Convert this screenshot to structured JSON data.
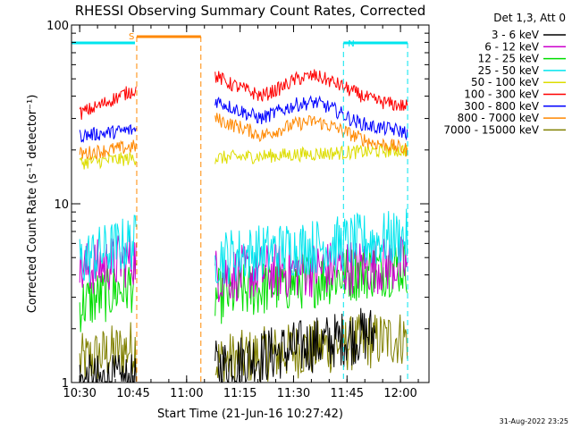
{
  "chart_data": {
    "type": "line",
    "title": "RHESSI Observing Summary Count Rates, Corrected",
    "xlabel": "Start Time (21-Jun-16 10:27:42)",
    "ylabel": "Corrected Count Rate (s⁻¹ detector⁻¹)",
    "yscale": "log",
    "ylim": [
      1,
      100
    ],
    "xlim": [
      "10:27:42",
      "12:08:00"
    ],
    "x_ticks": [
      "10:30",
      "10:45",
      "11:00",
      "11:15",
      "11:30",
      "11:45",
      "12:00"
    ],
    "y_ticks": [
      "1",
      "10",
      "100"
    ],
    "legend_header": "Det 1,3, Att 0",
    "legend_position": "top-right",
    "grid": false,
    "series": [
      {
        "name": "3 - 6 keV",
        "color": "#000000",
        "segments": [
          {
            "x": [
              "10:30",
              "10:46"
            ],
            "y": [
              1,
              1
            ]
          },
          {
            "x": [
              "11:08",
              "11:53"
            ],
            "y": [
              1.2,
              1.9
            ]
          }
        ]
      },
      {
        "name": "6 - 12 keV",
        "color": "#cc00cc",
        "segments": [
          {
            "x": [
              "10:30",
              "10:46"
            ],
            "y": [
              4.2,
              5.0
            ]
          },
          {
            "x": [
              "11:08",
              "12:02"
            ],
            "y": [
              4.0,
              4.6
            ]
          }
        ]
      },
      {
        "name": "12 - 25 keV",
        "color": "#00dd00",
        "segments": [
          {
            "x": [
              "10:30",
              "10:46"
            ],
            "y": [
              2.7,
              3.6
            ]
          },
          {
            "x": [
              "11:08",
              "12:02"
            ],
            "y": [
              3.0,
              4.5
            ]
          }
        ]
      },
      {
        "name": "25 - 50 keV",
        "color": "#00e5ee",
        "segments": [
          {
            "x": [
              "10:30",
              "10:46"
            ],
            "y": [
              4.8,
              6.2
            ]
          },
          {
            "x": [
              "11:08",
              "12:02"
            ],
            "y": [
              5.0,
              6.5
            ]
          }
        ]
      },
      {
        "name": "50 - 100 keV",
        "color": "#dddd00",
        "segments": [
          {
            "x": [
              "10:30",
              "10:46"
            ],
            "y": [
              17,
              18
            ]
          },
          {
            "x": [
              "11:08",
              "12:02"
            ],
            "y": [
              18,
              20
            ]
          }
        ]
      },
      {
        "name": "100 - 300 keV",
        "color": "#ff0000",
        "segments": [
          {
            "x": [
              "10:30",
              "10:35",
              "10:40",
              "10:46"
            ],
            "y": [
              32,
              35,
              39,
              44
            ]
          },
          {
            "x": [
              "11:08",
              "11:12",
              "11:17",
              "11:21",
              "11:26",
              "11:31",
              "11:36",
              "11:41",
              "11:47",
              "11:52",
              "11:58",
              "12:02"
            ],
            "y": [
              52,
              47,
              43,
              40,
              44,
              50,
              52,
              48,
              42,
              38,
              36,
              35
            ]
          }
        ]
      },
      {
        "name": "300 - 800 keV",
        "color": "#0000ff",
        "segments": [
          {
            "x": [
              "10:30",
              "10:46"
            ],
            "y": [
              24,
              26
            ]
          },
          {
            "x": [
              "11:08",
              "11:12",
              "11:17",
              "11:21",
              "11:26",
              "11:31",
              "11:36",
              "11:41",
              "11:47",
              "11:52",
              "11:58",
              "12:02"
            ],
            "y": [
              38,
              35,
              32,
              30,
              33,
              36,
              37,
              34,
              29,
              27,
              26,
              25
            ]
          }
        ]
      },
      {
        "name": "800 - 7000 keV",
        "color": "#ff8800",
        "segments": [
          {
            "x": [
              "10:30",
              "10:46"
            ],
            "y": [
              19,
              21
            ]
          },
          {
            "x": [
              "11:08",
              "11:12",
              "11:17",
              "11:21",
              "11:26",
              "11:31",
              "11:36",
              "11:41",
              "11:47",
              "11:52",
              "11:58",
              "12:02"
            ],
            "y": [
              30,
              28,
              26,
              24,
              26,
              28,
              29,
              27,
              24,
              22,
              21,
              20
            ]
          }
        ]
      },
      {
        "name": "7000 - 15000 keV",
        "color": "#808000",
        "segments": [
          {
            "x": [
              "10:30",
              "10:46"
            ],
            "y": [
              1.3,
              1.6
            ]
          },
          {
            "x": [
              "11:08",
              "12:02"
            ],
            "y": [
              1.3,
              1.8
            ]
          }
        ]
      }
    ],
    "flag_markers": [
      {
        "label": "S",
        "color": "#ff8800",
        "x": [
          "10:46",
          "11:04"
        ]
      },
      {
        "label": "N",
        "color": "#00e5ee",
        "x": [
          "11:44",
          "12:02"
        ]
      }
    ]
  },
  "footer": {
    "timestamp": "31-Aug-2022 23:25"
  }
}
